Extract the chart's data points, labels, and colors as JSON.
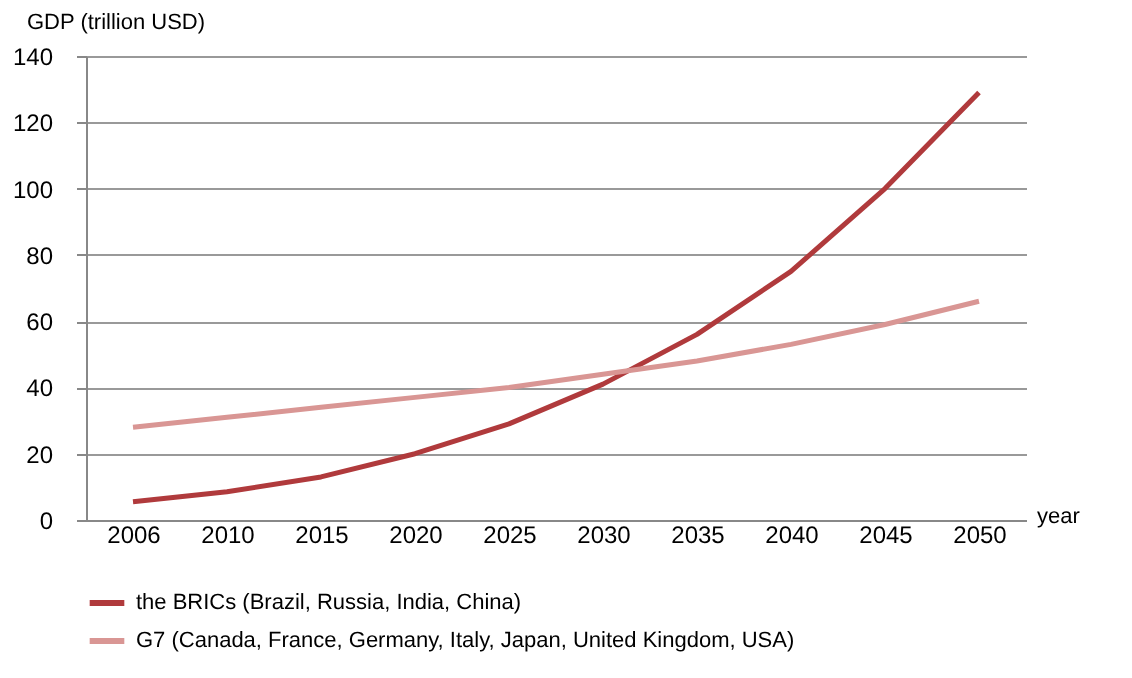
{
  "chart_data": {
    "type": "line",
    "xlabel": "year",
    "ylabel": "GDP (trillion USD)",
    "categories": [
      "2006",
      "2010",
      "2015",
      "2020",
      "2025",
      "2030",
      "2035",
      "2040",
      "2045",
      "2050"
    ],
    "series": [
      {
        "name": "the BRICs (Brazil, Russia, India, China)",
        "color": "#b03a3c",
        "values": [
          5.5,
          8.5,
          13,
          20,
          29,
          41,
          56,
          75,
          100,
          129
        ]
      },
      {
        "name": "G7 (Canada, France, Germany, Italy, Japan, United Kingdom, USA)",
        "color": "#d99694",
        "values": [
          28,
          31,
          34,
          37,
          40,
          44,
          48,
          53,
          59,
          66
        ]
      }
    ],
    "ylim": [
      0,
      140
    ],
    "yticks": [
      0,
      20,
      40,
      60,
      80,
      100,
      120,
      140
    ],
    "grid": "y",
    "legend": "bottom",
    "marker": "none",
    "line_style": "solid"
  }
}
